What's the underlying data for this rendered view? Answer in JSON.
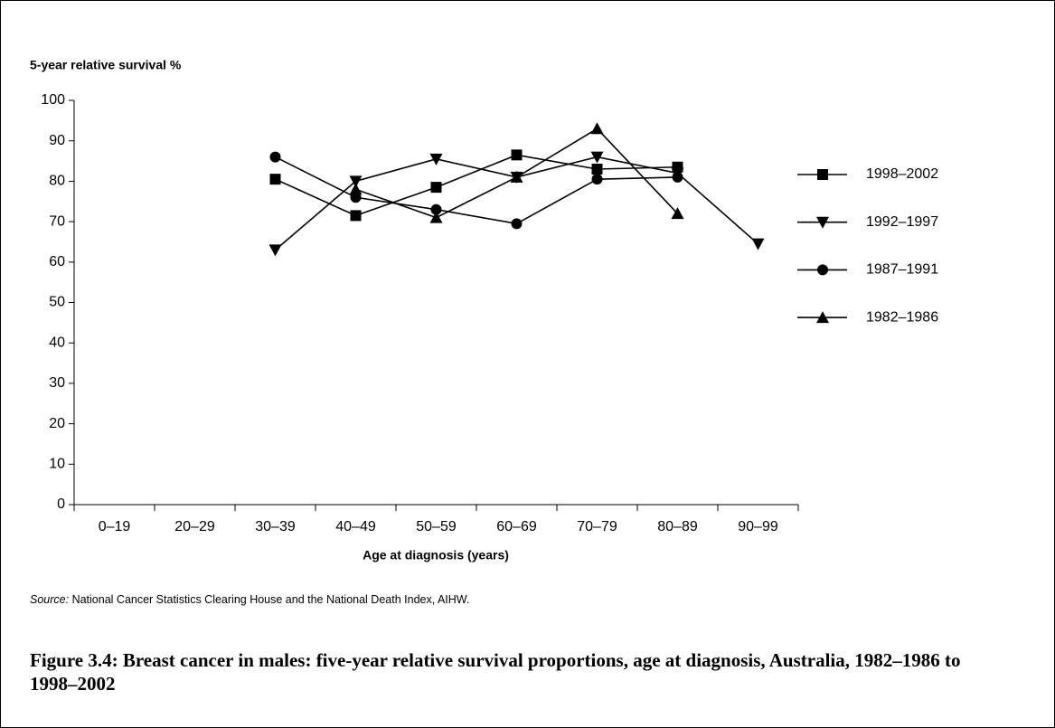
{
  "chart_data": {
    "type": "line",
    "y_label": "5-year relative survival %",
    "x_label": "Age at diagnosis (years)",
    "categories": [
      "0–19",
      "20–29",
      "30–39",
      "40–49",
      "50–59",
      "60–69",
      "70–79",
      "80–89",
      "90–99"
    ],
    "series": [
      {
        "name": "1998–2002",
        "color": "#000000",
        "marker": "square",
        "values": [
          null,
          null,
          80.5,
          71.5,
          78.5,
          86.5,
          83,
          83.5,
          null
        ]
      },
      {
        "name": "1992–1997",
        "color": "#000000",
        "marker": "triangle-down",
        "values": [
          null,
          null,
          63,
          80,
          85.5,
          81,
          86,
          82,
          64.5
        ]
      },
      {
        "name": "1987–1991",
        "color": "#000000",
        "marker": "circle",
        "values": [
          null,
          null,
          86,
          76,
          73,
          69.5,
          80.5,
          81,
          null
        ]
      },
      {
        "name": "1982–1986",
        "color": "#000000",
        "marker": "triangle-up",
        "values": [
          null,
          null,
          null,
          78,
          71,
          81,
          93,
          72,
          null
        ]
      }
    ],
    "ylim": [
      0,
      100
    ],
    "yticks": [
      0,
      10,
      20,
      30,
      40,
      50,
      60,
      70,
      80,
      90,
      100
    ],
    "grid": false,
    "legend": "right",
    "source_label": "Source:",
    "source": "National Cancer Statistics Clearing House and the National Death Index, AIHW.",
    "caption": "Figure 3.4: Breast cancer in males: five-year relative survival proportions, age at diagnosis, Australia, 1982–1986 to 1998–2002"
  }
}
